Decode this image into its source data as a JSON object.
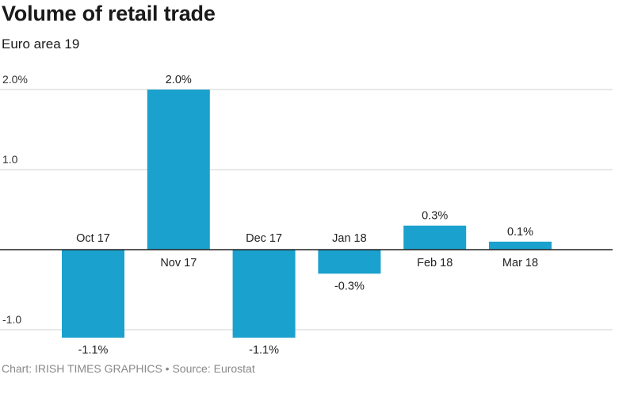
{
  "title": "Volume of retail trade",
  "subtitle": "Euro area 19",
  "footer": "Chart: IRISH TIMES GRAPHICS • Source: Eurostat",
  "colors": {
    "bar": "#1ba1cd",
    "grid": "#d9d9d9",
    "axis": "#222222"
  },
  "chart_data": {
    "type": "bar",
    "title": "Volume of retail trade",
    "subtitle": "Euro area 19",
    "xlabel": "",
    "ylabel": "",
    "ylim": [
      -1.3,
      2.2
    ],
    "grid": true,
    "categories": [
      "Oct 17",
      "Nov 17",
      "Dec 17",
      "Jan 18",
      "Feb 18",
      "Mar 18"
    ],
    "values": [
      -1.1,
      2.0,
      -1.1,
      -0.3,
      0.3,
      0.1
    ],
    "value_labels": [
      "-1.1%",
      "2.0%",
      "-1.1%",
      "-0.3%",
      "0.3%",
      "0.1%"
    ],
    "yticks": [
      {
        "value": 2.0,
        "label": "2.0%"
      },
      {
        "value": 1.0,
        "label": "1.0"
      },
      {
        "value": -1.0,
        "label": "-1.0"
      }
    ]
  }
}
